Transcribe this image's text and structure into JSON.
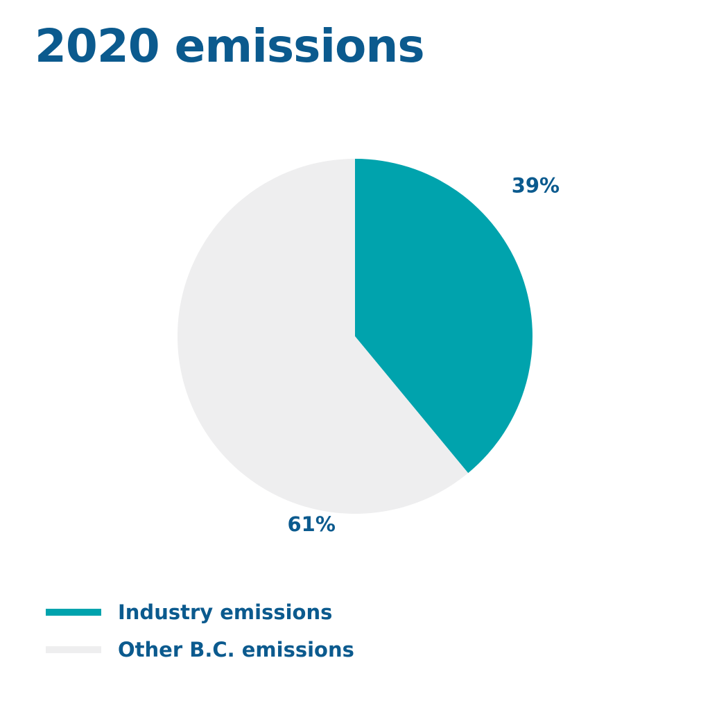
{
  "chart_data": {
    "type": "pie",
    "title": "2020 emissions",
    "slices": [
      {
        "label": "Industry emissions",
        "value": 39,
        "display": "39%",
        "color": "#00A3AD"
      },
      {
        "label": "Other B.C. emissions",
        "value": 61,
        "display": "61%",
        "color": "#EEEEEF"
      }
    ],
    "start_angle": "12 o'clock",
    "direction": "clockwise",
    "label_color": "#0B5A8E",
    "legend_position": "bottom-left"
  }
}
